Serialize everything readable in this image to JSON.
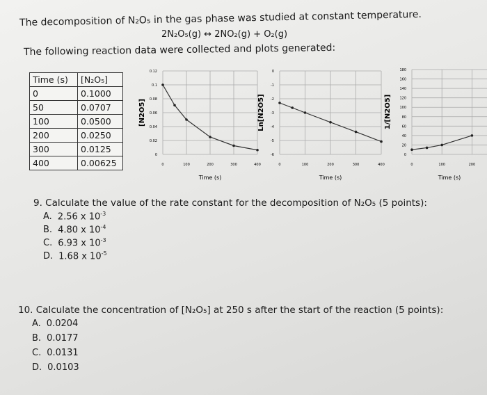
{
  "header": {
    "title": "The decomposition of N₂O₅ in the gas phase was studied at constant temperature.",
    "equation": "2N₂O₅(g) ↔ 2NO₂(g) + O₂(g)",
    "intro": "The following reaction data were collected and plots generated:"
  },
  "table": {
    "columns": [
      "Time (s)",
      "[N₂O₅]"
    ],
    "rows": [
      [
        "0",
        "0.1000"
      ],
      [
        "50",
        "0.0707"
      ],
      [
        "100",
        "0.0500"
      ],
      [
        "200",
        "0.0250"
      ],
      [
        "300",
        "0.0125"
      ],
      [
        "400",
        "0.00625"
      ]
    ]
  },
  "plots": [
    {
      "ylabel": "[N2O5]",
      "xlabel": "Time (s)",
      "xlim": [
        0,
        400
      ],
      "ylim": [
        0,
        0.12
      ],
      "xticks": [
        0,
        100,
        200,
        300,
        400
      ],
      "yticks": [
        0,
        0.02,
        0.04,
        0.06,
        0.08,
        0.1,
        0.12
      ],
      "x": [
        0,
        50,
        100,
        200,
        300,
        400
      ],
      "values": [
        0.1,
        0.0707,
        0.05,
        0.025,
        0.0125,
        0.00625
      ]
    },
    {
      "ylabel": "Ln[N2O5]",
      "xlabel": "Time (s)",
      "xlim": [
        0,
        400
      ],
      "ylim": [
        -6,
        0
      ],
      "xticks": [
        0,
        100,
        200,
        300,
        400
      ],
      "yticks": [
        0,
        -1,
        -2,
        -3,
        -4,
        -5,
        -6
      ],
      "x": [
        0,
        50,
        100,
        200,
        300,
        400
      ],
      "values": [
        -2.3,
        -2.65,
        -3,
        -3.69,
        -4.38,
        -5.08
      ]
    },
    {
      "ylabel": "1/[N2O5]",
      "xlabel": "Time (s)",
      "xlim": [
        0,
        250
      ],
      "ylim": [
        0,
        180
      ],
      "xticks": [
        0,
        100,
        200
      ],
      "yticks": [
        0,
        20,
        40,
        60,
        80,
        100,
        120,
        140,
        160,
        180
      ],
      "x": [
        0,
        50,
        100,
        200
      ],
      "values": [
        10,
        14.1,
        20,
        40
      ]
    }
  ],
  "questions": [
    {
      "text": "9. Calculate the value of the rate constant for the decomposition of N₂O₅ (5 points):",
      "options": [
        {
          "letter": "A.",
          "mantissa": "2.56 x 10",
          "exponent": "-3"
        },
        {
          "letter": "B.",
          "mantissa": "4.80 x 10",
          "exponent": "-4"
        },
        {
          "letter": "C.",
          "mantissa": "6.93 x 10",
          "exponent": "-3"
        },
        {
          "letter": "D.",
          "mantissa": "1.68 x 10",
          "exponent": "-5"
        }
      ]
    },
    {
      "text": "10. Calculate the concentration of [N₂O₅] at 250 s after the start of the reaction (5 points):",
      "options": [
        {
          "letter": "A.",
          "mantissa": "0.0204"
        },
        {
          "letter": "B.",
          "mantissa": "0.0177"
        },
        {
          "letter": "C.",
          "mantissa": "0.0131"
        },
        {
          "letter": "D.",
          "mantissa": "0.0103"
        }
      ]
    }
  ]
}
